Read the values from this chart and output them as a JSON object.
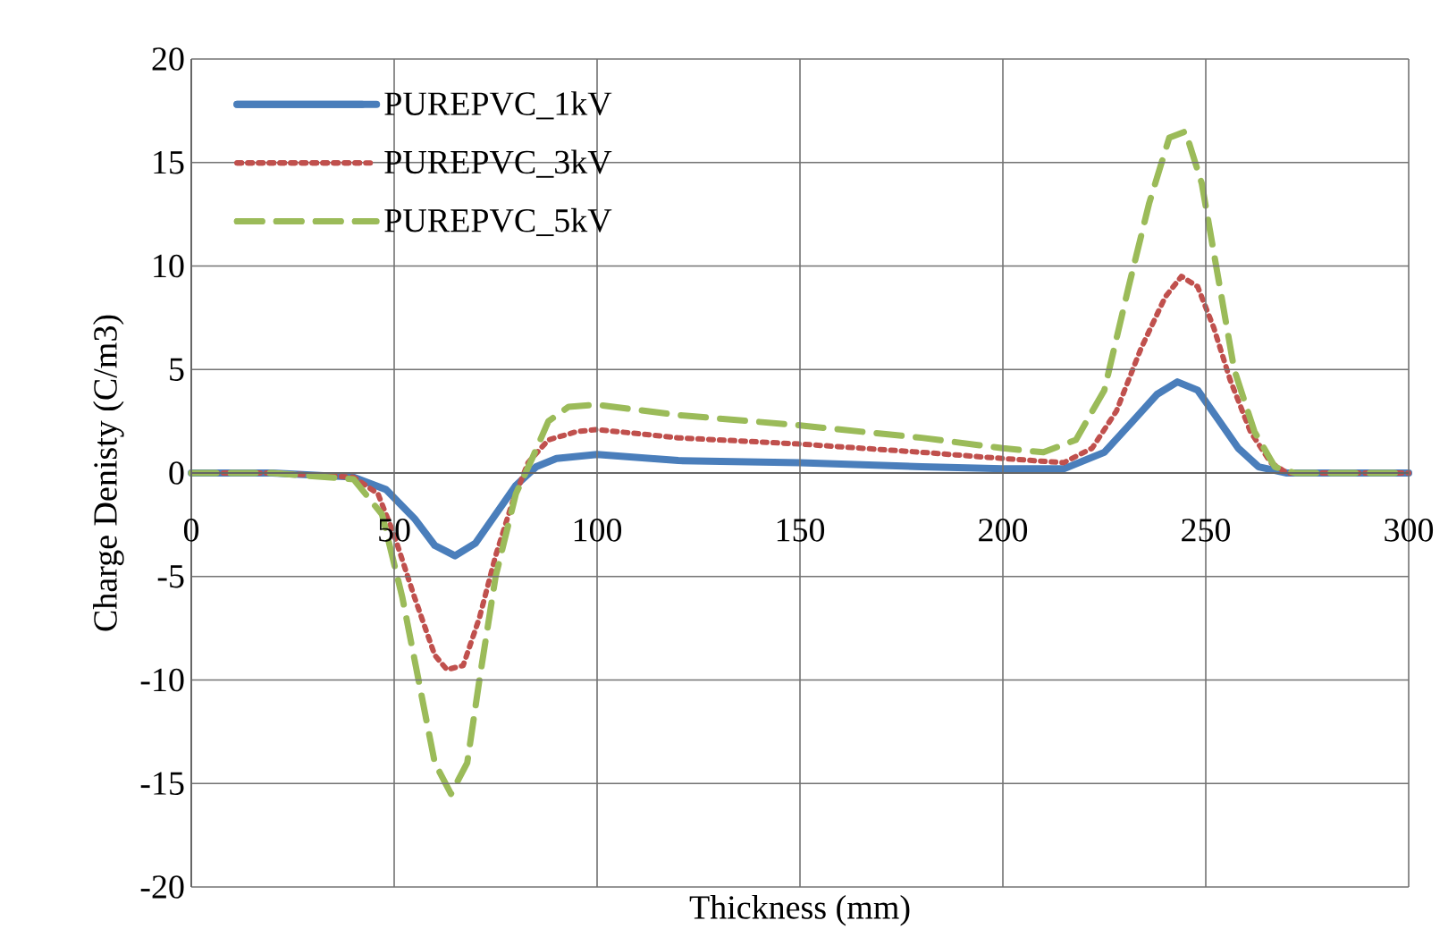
{
  "chart_data": {
    "type": "line",
    "xlabel": "Thickness (mm)",
    "ylabel": "Charge Denisty (C/m3)",
    "xlim": [
      0,
      300
    ],
    "xticks": [
      0,
      50,
      100,
      150,
      200,
      250,
      300
    ],
    "ylim": [
      -20,
      20
    ],
    "yticks": [
      -20,
      -15,
      -10,
      -5,
      0,
      5,
      10,
      15,
      20
    ],
    "grid": true,
    "legend": "top left",
    "marker": "none",
    "series": [
      {
        "name": "PUREPVC_1kV",
        "color": "#4a7ebb",
        "line_style": "solid",
        "x": [
          0,
          20,
          40,
          48,
          55,
          60,
          65,
          70,
          75,
          80,
          85,
          90,
          95,
          100,
          120,
          150,
          180,
          200,
          215,
          225,
          232,
          238,
          243,
          248,
          253,
          258,
          263,
          270,
          300
        ],
        "values": [
          0,
          0,
          -0.2,
          -0.8,
          -2.2,
          -3.5,
          -4,
          -3.4,
          -2,
          -0.6,
          0.3,
          0.7,
          0.8,
          0.9,
          0.6,
          0.5,
          0.3,
          0.2,
          0.2,
          1,
          2.5,
          3.8,
          4.4,
          4,
          2.6,
          1.2,
          0.3,
          0,
          0
        ]
      },
      {
        "name": "PUREPVC_3kV",
        "color": "#c0504d",
        "line_style": "dotted",
        "x": [
          0,
          20,
          40,
          46,
          50,
          55,
          60,
          63,
          67,
          71,
          75,
          79,
          83,
          88,
          95,
          100,
          120,
          150,
          180,
          200,
          215,
          222,
          228,
          234,
          240,
          244,
          248,
          252,
          256,
          261,
          266,
          270,
          300
        ],
        "values": [
          0,
          0,
          -0.2,
          -1,
          -3,
          -6,
          -8.8,
          -9.5,
          -9.3,
          -7,
          -4,
          -1.5,
          0.5,
          1.6,
          2,
          2.1,
          1.7,
          1.4,
          1,
          0.7,
          0.5,
          1.2,
          3,
          6,
          8.5,
          9.5,
          9,
          7,
          4.5,
          2,
          0.5,
          0,
          0
        ]
      },
      {
        "name": "PUREPVC_5kV",
        "color": "#9bbb59",
        "line_style": "dashed",
        "x": [
          0,
          20,
          40,
          47,
          52,
          56,
          60,
          64,
          68,
          71,
          75,
          80,
          84,
          88,
          93,
          100,
          120,
          150,
          180,
          200,
          210,
          218,
          225,
          231,
          236,
          241,
          245,
          249,
          253,
          257,
          262,
          267,
          272,
          300
        ],
        "values": [
          0,
          0,
          -0.3,
          -2,
          -6,
          -10,
          -14,
          -15.5,
          -14,
          -10,
          -5,
          -1,
          0.7,
          2.5,
          3.2,
          3.3,
          2.8,
          2.3,
          1.7,
          1.2,
          1,
          1.6,
          4,
          9,
          13,
          16.2,
          16.5,
          14,
          9.5,
          5,
          2,
          0.3,
          0,
          0
        ]
      }
    ]
  }
}
